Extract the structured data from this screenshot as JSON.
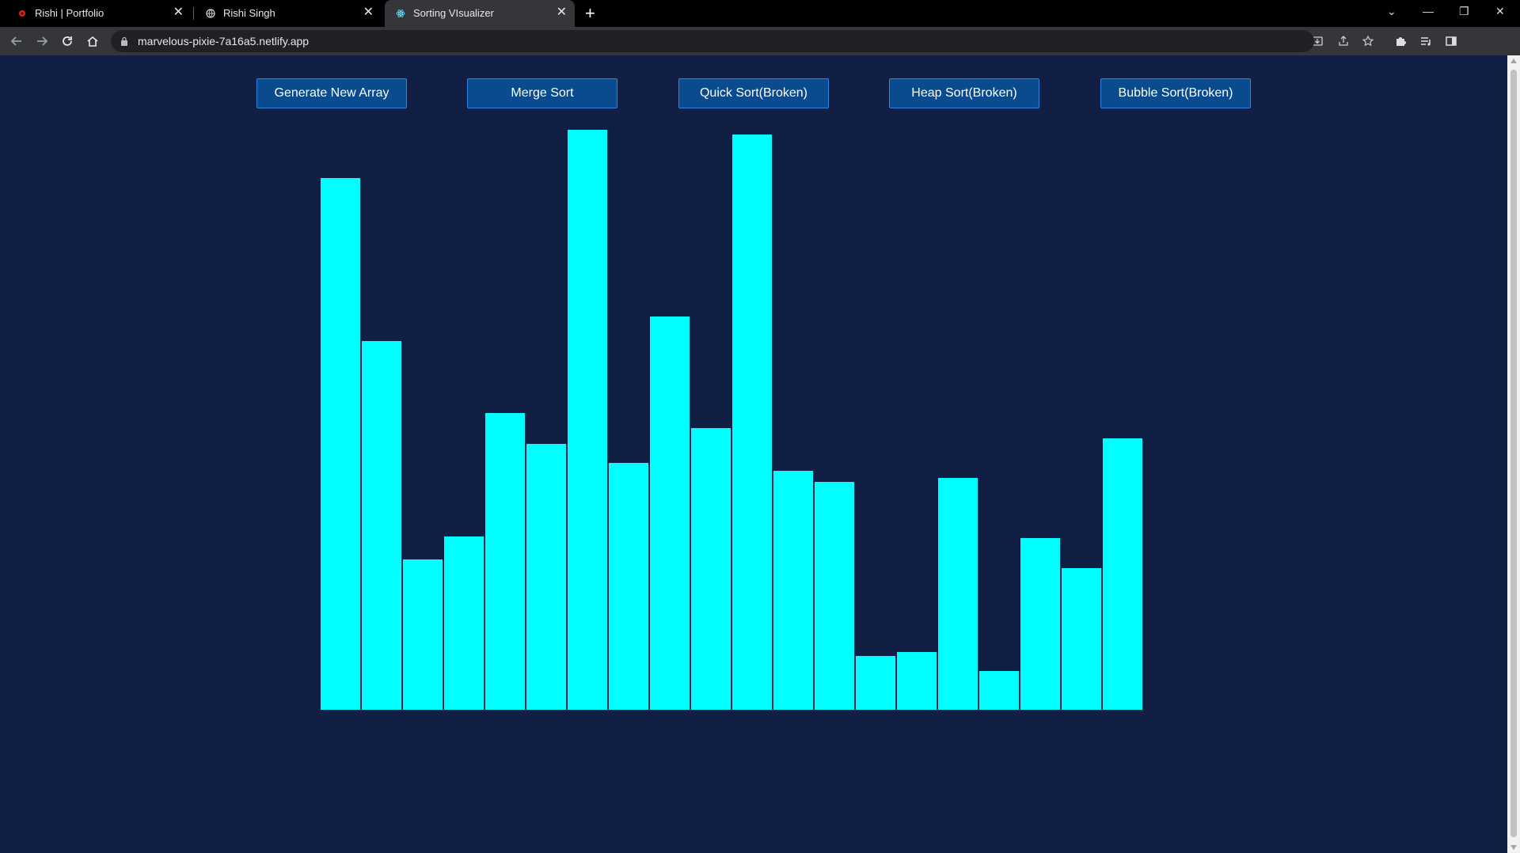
{
  "browser": {
    "tabs": [
      {
        "title": "Rishi | Portfolio",
        "active": false
      },
      {
        "title": "Rishi Singh",
        "active": false
      },
      {
        "title": "Sorting VIsualizer",
        "active": true
      }
    ],
    "url": "marvelous-pixie-7a16a5.netlify.app"
  },
  "controls": {
    "generate_label": "Generate New Array",
    "merge_label": "Merge Sort",
    "quick_label": "Quick Sort(Broken)",
    "heap_label": "Heap Sort(Broken)",
    "bubble_label": "Bubble Sort(Broken)"
  },
  "colors": {
    "bar": "#00ffff",
    "background": "#121f44",
    "button": "#0a4b8f"
  },
  "array_values": [
    672,
    466,
    190,
    219,
    375,
    336,
    733,
    312,
    497,
    356,
    727,
    302,
    288,
    68,
    73,
    293,
    49,
    217,
    179,
    343
  ]
}
